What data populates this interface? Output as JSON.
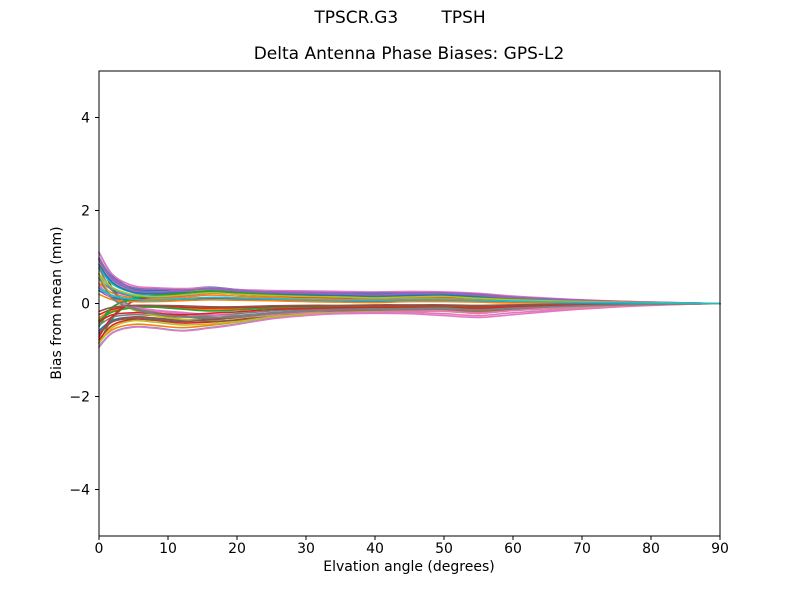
{
  "figure": {
    "suptitle": "TPSCR.G3        TPSH",
    "background": "#ffffff"
  },
  "chart_data": {
    "type": "line",
    "title": "Delta Antenna Phase Biases: GPS-L2",
    "xlabel": "Elvation angle (degrees)",
    "ylabel": "Bias from mean (mm)",
    "xlim": [
      0,
      90
    ],
    "ylim": [
      -5,
      5
    ],
    "xticks": [
      0,
      10,
      20,
      30,
      40,
      50,
      60,
      70,
      80,
      90
    ],
    "xtick_labels": [
      "0",
      "10",
      "20",
      "30",
      "40",
      "50",
      "60",
      "70",
      "80",
      "90"
    ],
    "yticks": [
      -4,
      -2,
      0,
      2,
      4
    ],
    "ytick_labels": [
      "−4",
      "−2",
      "0",
      "2",
      "4"
    ],
    "grid": false,
    "legend": "none",
    "axis_color": "#000000",
    "palette": [
      "#1f77b4",
      "#ff7f0e",
      "#2ca02c",
      "#d62728",
      "#9467bd",
      "#8c564b",
      "#e377c2",
      "#7f7f7f",
      "#bcbd22",
      "#17becf"
    ],
    "x": [
      0,
      2,
      5,
      8,
      12,
      16,
      20,
      25,
      30,
      35,
      40,
      45,
      50,
      55,
      60,
      70,
      80,
      90
    ],
    "series": [
      {
        "color": "#1f77b4",
        "values": [
          1.1,
          0.6,
          0.32,
          0.28,
          0.3,
          0.35,
          0.3,
          0.26,
          0.24,
          0.22,
          0.2,
          0.22,
          0.24,
          0.18,
          0.12,
          0.06,
          0.02,
          0
        ]
      },
      {
        "color": "#ff7f0e",
        "values": [
          -0.31,
          -0.15,
          -0.08,
          -0.07,
          -0.1,
          -0.13,
          -0.12,
          -0.09,
          -0.08,
          -0.07,
          -0.06,
          -0.06,
          -0.06,
          -0.08,
          -0.06,
          -0.02,
          -0.01,
          0
        ]
      },
      {
        "color": "#2ca02c",
        "values": [
          -0.85,
          -0.32,
          0.06,
          0.16,
          0.22,
          0.28,
          0.24,
          0.2,
          0.17,
          0.15,
          0.14,
          0.16,
          0.17,
          0.13,
          0.09,
          0.04,
          0.01,
          0
        ]
      },
      {
        "color": "#d62728",
        "values": [
          -0.78,
          -0.46,
          -0.34,
          -0.36,
          -0.42,
          -0.4,
          -0.35,
          -0.26,
          -0.21,
          -0.18,
          -0.16,
          -0.15,
          -0.15,
          -0.19,
          -0.14,
          -0.07,
          -0.02,
          0
        ]
      },
      {
        "color": "#9467bd",
        "values": [
          0.55,
          0.28,
          0.15,
          0.12,
          0.16,
          0.22,
          0.2,
          0.16,
          0.14,
          0.12,
          0.11,
          0.13,
          0.14,
          0.11,
          0.08,
          0.04,
          0.01,
          0
        ]
      },
      {
        "color": "#8c564b",
        "values": [
          0.95,
          0.32,
          -0.1,
          -0.24,
          -0.34,
          -0.38,
          -0.36,
          -0.27,
          -0.21,
          -0.18,
          -0.17,
          -0.16,
          -0.15,
          -0.19,
          -0.14,
          -0.07,
          -0.02,
          0
        ]
      },
      {
        "color": "#e377c2",
        "values": [
          0.4,
          0.12,
          -0.08,
          -0.16,
          -0.22,
          -0.28,
          -0.3,
          -0.26,
          -0.24,
          -0.22,
          -0.21,
          -0.22,
          -0.26,
          -0.3,
          -0.24,
          -0.12,
          -0.04,
          0
        ]
      },
      {
        "color": "#7f7f7f",
        "values": [
          0.34,
          0.14,
          0.07,
          0.06,
          0.1,
          0.13,
          0.12,
          0.1,
          0.07,
          0.05,
          0.04,
          0.06,
          0.07,
          0.05,
          0.02,
          0.01,
          0,
          0
        ]
      },
      {
        "color": "#bcbd22",
        "values": [
          0.85,
          0.45,
          0.25,
          0.2,
          0.24,
          0.3,
          0.26,
          0.22,
          0.2,
          0.18,
          0.16,
          0.18,
          0.2,
          0.15,
          0.1,
          0.05,
          0.02,
          0
        ]
      },
      {
        "color": "#17becf",
        "values": [
          -0.92,
          -0.62,
          -0.5,
          -0.52,
          -0.58,
          -0.52,
          -0.44,
          -0.32,
          -0.25,
          -0.21,
          -0.19,
          -0.17,
          -0.16,
          -0.21,
          -0.15,
          -0.07,
          -0.02,
          0
        ]
      },
      {
        "color": "#1f77b4",
        "values": [
          -0.58,
          -0.36,
          -0.29,
          -0.32,
          -0.36,
          -0.32,
          -0.27,
          -0.2,
          -0.16,
          -0.14,
          -0.13,
          -0.12,
          -0.12,
          -0.15,
          -0.11,
          -0.05,
          -0.02,
          0
        ]
      },
      {
        "color": "#ff7f0e",
        "values": [
          0.44,
          0.22,
          0.12,
          0.1,
          0.13,
          0.18,
          0.16,
          0.13,
          0.11,
          0.1,
          0.09,
          0.1,
          0.11,
          0.09,
          0.06,
          0.03,
          0.01,
          0
        ]
      },
      {
        "color": "#2ca02c",
        "values": [
          -0.5,
          -0.08,
          0.12,
          0.2,
          0.26,
          0.32,
          0.28,
          0.22,
          0.19,
          0.16,
          0.15,
          0.17,
          0.18,
          0.14,
          0.1,
          0.05,
          0.01,
          0
        ]
      },
      {
        "color": "#d62728",
        "values": [
          -0.24,
          -0.12,
          -0.06,
          -0.05,
          -0.08,
          -0.1,
          -0.09,
          -0.07,
          -0.06,
          -0.05,
          -0.04,
          -0.04,
          -0.04,
          -0.06,
          -0.04,
          -0.02,
          -0.01,
          0
        ]
      },
      {
        "color": "#9467bd",
        "values": [
          0.99,
          0.54,
          0.29,
          0.25,
          0.27,
          0.32,
          0.27,
          0.23,
          0.22,
          0.2,
          0.18,
          0.2,
          0.22,
          0.16,
          0.11,
          0.05,
          0.02,
          0
        ]
      },
      {
        "color": "#8c564b",
        "values": [
          -0.66,
          -0.39,
          -0.29,
          -0.31,
          -0.36,
          -0.34,
          -0.3,
          -0.22,
          -0.18,
          -0.15,
          -0.14,
          -0.13,
          -0.13,
          -0.16,
          -0.12,
          -0.06,
          -0.02,
          0
        ]
      },
      {
        "color": "#e377c2",
        "values": [
          1.1,
          0.62,
          0.38,
          0.34,
          0.32,
          0.34,
          0.3,
          0.28,
          0.27,
          0.26,
          0.25,
          0.26,
          0.25,
          0.22,
          0.16,
          0.08,
          0.03,
          0
        ]
      },
      {
        "color": "#7f7f7f",
        "values": [
          -0.47,
          -0.29,
          -0.24,
          -0.26,
          -0.29,
          -0.26,
          -0.22,
          -0.16,
          -0.13,
          -0.11,
          -0.1,
          -0.09,
          -0.09,
          -0.12,
          -0.09,
          -0.04,
          -0.02,
          0
        ]
      },
      {
        "color": "#bcbd22",
        "values": [
          0.65,
          0.12,
          -0.14,
          -0.26,
          -0.34,
          -0.36,
          -0.31,
          -0.23,
          -0.18,
          -0.15,
          -0.14,
          -0.13,
          -0.12,
          -0.16,
          -0.12,
          -0.06,
          -0.02,
          0
        ]
      },
      {
        "color": "#17becf",
        "values": [
          0.77,
          0.41,
          0.23,
          0.18,
          0.22,
          0.27,
          0.23,
          0.2,
          0.18,
          0.16,
          0.14,
          0.16,
          0.18,
          0.14,
          0.09,
          0.05,
          0.02,
          0
        ]
      },
      {
        "color": "#1f77b4",
        "values": [
          0.28,
          0.12,
          0.06,
          0.05,
          0.08,
          0.11,
          0.1,
          0.08,
          0.06,
          0.04,
          0.03,
          0.05,
          0.06,
          0.04,
          0.02,
          0.01,
          0,
          0
        ]
      },
      {
        "color": "#ff7f0e",
        "values": [
          -0.83,
          -0.56,
          -0.45,
          -0.47,
          -0.52,
          -0.47,
          -0.4,
          -0.29,
          -0.23,
          -0.19,
          -0.17,
          -0.15,
          -0.14,
          -0.19,
          -0.14,
          -0.06,
          -0.02,
          0
        ]
      },
      {
        "color": "#2ca02c",
        "values": [
          -0.36,
          -0.18,
          -0.09,
          -0.08,
          -0.12,
          -0.16,
          -0.14,
          -0.1,
          -0.09,
          -0.08,
          -0.07,
          -0.07,
          -0.07,
          -0.09,
          -0.07,
          -0.03,
          -0.01,
          0
        ]
      },
      {
        "color": "#d62728",
        "values": [
          -0.72,
          -0.27,
          0.05,
          0.14,
          0.19,
          0.24,
          0.2,
          0.17,
          0.14,
          0.13,
          0.12,
          0.14,
          0.14,
          0.11,
          0.08,
          0.03,
          0.01,
          0
        ]
      },
      {
        "color": "#9467bd",
        "values": [
          0.94,
          0.5,
          0.28,
          0.22,
          0.26,
          0.33,
          0.29,
          0.24,
          0.22,
          0.2,
          0.18,
          0.2,
          0.22,
          0.17,
          0.11,
          0.06,
          0.02,
          0
        ]
      },
      {
        "color": "#8c564b",
        "values": [
          -0.63,
          -0.39,
          -0.32,
          -0.35,
          -0.39,
          -0.35,
          -0.3,
          -0.22,
          -0.17,
          -0.15,
          -0.14,
          -0.13,
          -0.13,
          -0.16,
          -0.12,
          -0.06,
          -0.02,
          0
        ]
      },
      {
        "color": "#e377c2",
        "values": [
          0.34,
          0.1,
          -0.07,
          -0.14,
          -0.19,
          -0.24,
          -0.26,
          -0.22,
          -0.2,
          -0.19,
          -0.18,
          -0.19,
          -0.22,
          -0.26,
          -0.2,
          -0.1,
          -0.03,
          0
        ]
      },
      {
        "color": "#7f7f7f",
        "values": [
          0.76,
          0.26,
          -0.08,
          -0.19,
          -0.27,
          -0.3,
          -0.29,
          -0.22,
          -0.17,
          -0.14,
          -0.14,
          -0.13,
          -0.12,
          -0.15,
          -0.11,
          -0.06,
          -0.02,
          0
        ]
      },
      {
        "color": "#bcbd22",
        "values": [
          -0.86,
          -0.51,
          -0.37,
          -0.4,
          -0.46,
          -0.44,
          -0.39,
          -0.29,
          -0.23,
          -0.2,
          -0.18,
          -0.17,
          -0.17,
          -0.21,
          -0.15,
          -0.08,
          -0.02,
          0
        ]
      },
      {
        "color": "#17becf",
        "values": [
          0.63,
          0.32,
          0.17,
          0.14,
          0.18,
          0.25,
          0.23,
          0.18,
          0.16,
          0.14,
          0.13,
          0.15,
          0.16,
          0.13,
          0.09,
          0.05,
          0.01,
          0
        ]
      },
      {
        "color": "#1f77b4",
        "values": [
          0.83,
          0.45,
          0.24,
          0.21,
          0.23,
          0.26,
          0.23,
          0.2,
          0.18,
          0.17,
          0.15,
          0.17,
          0.18,
          0.14,
          0.09,
          0.05,
          0.02,
          0
        ]
      },
      {
        "color": "#ff7f0e",
        "values": [
          0.2,
          0.08,
          0.04,
          0.04,
          0.06,
          0.08,
          0.07,
          0.06,
          0.04,
          0.03,
          0.02,
          0.04,
          0.04,
          0.03,
          0.01,
          0.01,
          0,
          0
        ]
      },
      {
        "color": "#2ca02c",
        "values": [
          -0.43,
          -0.07,
          0.1,
          0.17,
          0.22,
          0.27,
          0.24,
          0.19,
          0.16,
          0.14,
          0.13,
          0.14,
          0.15,
          0.12,
          0.09,
          0.04,
          0.01,
          0
        ]
      },
      {
        "color": "#d62728",
        "values": [
          -0.39,
          -0.24,
          -0.2,
          -0.21,
          -0.24,
          -0.21,
          -0.18,
          -0.13,
          -0.11,
          -0.09,
          -0.08,
          -0.08,
          -0.08,
          -0.1,
          -0.07,
          -0.04,
          -0.01,
          0
        ]
      },
      {
        "color": "#9467bd",
        "values": [
          0.95,
          0.56,
          0.34,
          0.31,
          0.29,
          0.31,
          0.27,
          0.25,
          0.24,
          0.23,
          0.23,
          0.23,
          0.23,
          0.2,
          0.14,
          0.07,
          0.03,
          0
        ]
      },
      {
        "color": "#8c564b",
        "values": [
          -0.17,
          -0.08,
          -0.04,
          -0.04,
          -0.05,
          -0.07,
          -0.07,
          -0.05,
          -0.04,
          -0.04,
          -0.03,
          -0.03,
          -0.03,
          -0.04,
          -0.03,
          -0.01,
          -0.01,
          0
        ]
      },
      {
        "color": "#e377c2",
        "values": [
          -0.94,
          -0.63,
          -0.51,
          -0.53,
          -0.59,
          -0.53,
          -0.45,
          -0.33,
          -0.26,
          -0.21,
          -0.19,
          -0.17,
          -0.16,
          -0.21,
          -0.15,
          -0.07,
          -0.02,
          0
        ]
      },
      {
        "color": "#7f7f7f",
        "values": [
          0.55,
          0.1,
          -0.12,
          -0.22,
          -0.29,
          -0.31,
          -0.26,
          -0.2,
          -0.15,
          -0.13,
          -0.12,
          -0.11,
          -0.1,
          -0.14,
          -0.1,
          -0.05,
          -0.02,
          0
        ]
      },
      {
        "color": "#bcbd22",
        "values": [
          0.64,
          0.34,
          0.19,
          0.15,
          0.18,
          0.23,
          0.2,
          0.17,
          0.15,
          0.14,
          0.12,
          0.14,
          0.15,
          0.11,
          0.08,
          0.04,
          0.02,
          0
        ]
      },
      {
        "color": "#17becf",
        "values": [
          0.33,
          0.17,
          0.09,
          0.07,
          0.1,
          0.13,
          0.12,
          0.1,
          0.08,
          0.07,
          0.07,
          0.08,
          0.08,
          0.07,
          0.05,
          0.02,
          0.01,
          0
        ]
      }
    ]
  }
}
